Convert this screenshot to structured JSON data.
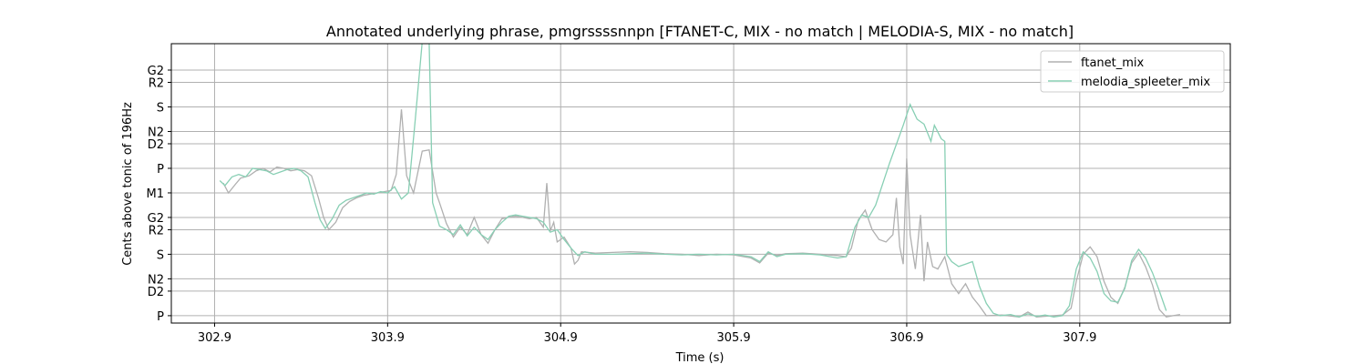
{
  "chart_data": {
    "type": "line",
    "title": "Annotated underlying phrase, pmgrssssnnpn [FTANET-C, MIX - no match | MELODIA-S, MIX - no match]",
    "xlabel": "Time (s)",
    "ylabel": "Cents above tonic of 196Hz",
    "xlim": [
      302.65,
      308.77
    ],
    "ylim": [
      -60,
      2215
    ],
    "grid": true,
    "legend_position": "top-right",
    "x_ticks": [
      302.9,
      303.9,
      304.9,
      305.9,
      306.9,
      307.9
    ],
    "y_ticks": [
      {
        "label": "P",
        "cents": 0
      },
      {
        "label": "D2",
        "cents": 200
      },
      {
        "label": "N2",
        "cents": 300
      },
      {
        "label": "S",
        "cents": 500
      },
      {
        "label": "R2",
        "cents": 700
      },
      {
        "label": "G2",
        "cents": 800
      },
      {
        "label": "M1",
        "cents": 1000
      },
      {
        "label": "P",
        "cents": 1200
      },
      {
        "label": "D2",
        "cents": 1400
      },
      {
        "label": "N2",
        "cents": 1500
      },
      {
        "label": "S",
        "cents": 1700
      },
      {
        "label": "R2",
        "cents": 1900
      },
      {
        "label": "G2",
        "cents": 2000
      }
    ],
    "series": [
      {
        "name": "ftanet_mix",
        "color": "#b0b0b0",
        "points": [
          [
            302.95,
            1080
          ],
          [
            302.98,
            1000
          ],
          [
            303.02,
            1070
          ],
          [
            303.05,
            1120
          ],
          [
            303.1,
            1140
          ],
          [
            303.14,
            1180
          ],
          [
            303.18,
            1200
          ],
          [
            303.22,
            1170
          ],
          [
            303.26,
            1210
          ],
          [
            303.3,
            1200
          ],
          [
            303.34,
            1180
          ],
          [
            303.38,
            1190
          ],
          [
            303.42,
            1180
          ],
          [
            303.46,
            1140
          ],
          [
            303.5,
            960
          ],
          [
            303.53,
            800
          ],
          [
            303.56,
            700
          ],
          [
            303.6,
            760
          ],
          [
            303.64,
            880
          ],
          [
            303.68,
            930
          ],
          [
            303.72,
            960
          ],
          [
            303.76,
            980
          ],
          [
            303.8,
            990
          ],
          [
            303.84,
            1000
          ],
          [
            303.88,
            1010
          ],
          [
            303.92,
            1020
          ],
          [
            303.95,
            1150
          ],
          [
            303.98,
            1680
          ],
          [
            304.01,
            1140
          ],
          [
            304.05,
            1000
          ],
          [
            304.1,
            1340
          ],
          [
            304.14,
            1350
          ],
          [
            304.18,
            1000
          ],
          [
            304.2,
            920
          ],
          [
            304.24,
            750
          ],
          [
            304.28,
            640
          ],
          [
            304.32,
            720
          ],
          [
            304.36,
            660
          ],
          [
            304.4,
            800
          ],
          [
            304.44,
            660
          ],
          [
            304.48,
            590
          ],
          [
            304.52,
            700
          ],
          [
            304.56,
            790
          ],
          [
            304.6,
            800
          ],
          [
            304.64,
            810
          ],
          [
            304.68,
            800
          ],
          [
            304.72,
            790
          ],
          [
            304.76,
            800
          ],
          [
            304.8,
            720
          ],
          [
            304.82,
            1080
          ],
          [
            304.84,
            690
          ],
          [
            304.86,
            760
          ],
          [
            304.88,
            600
          ],
          [
            304.92,
            640
          ],
          [
            304.96,
            550
          ],
          [
            304.98,
            420
          ],
          [
            305.0,
            450
          ],
          [
            305.02,
            520
          ],
          [
            305.1,
            510
          ],
          [
            305.2,
            515
          ],
          [
            305.3,
            520
          ],
          [
            305.4,
            515
          ],
          [
            305.5,
            505
          ],
          [
            305.6,
            500
          ],
          [
            305.7,
            490
          ],
          [
            305.8,
            500
          ],
          [
            305.9,
            495
          ],
          [
            306.0,
            470
          ],
          [
            306.05,
            430
          ],
          [
            306.1,
            510
          ],
          [
            306.15,
            490
          ],
          [
            306.2,
            505
          ],
          [
            306.3,
            510
          ],
          [
            306.4,
            500
          ],
          [
            306.5,
            490
          ],
          [
            306.55,
            480
          ],
          [
            306.58,
            550
          ],
          [
            306.62,
            780
          ],
          [
            306.66,
            860
          ],
          [
            306.7,
            700
          ],
          [
            306.74,
            620
          ],
          [
            306.78,
            600
          ],
          [
            306.82,
            660
          ],
          [
            306.84,
            960
          ],
          [
            306.86,
            560
          ],
          [
            306.88,
            420
          ],
          [
            306.9,
            1280
          ],
          [
            306.92,
            660
          ],
          [
            306.95,
            380
          ],
          [
            306.98,
            820
          ],
          [
            307.0,
            280
          ],
          [
            307.02,
            600
          ],
          [
            307.05,
            400
          ],
          [
            307.08,
            380
          ],
          [
            307.12,
            480
          ],
          [
            307.16,
            260
          ],
          [
            307.2,
            180
          ],
          [
            307.24,
            260
          ],
          [
            307.28,
            150
          ],
          [
            307.32,
            80
          ],
          [
            307.36,
            0
          ],
          [
            307.45,
            5
          ],
          [
            307.55,
            -10
          ],
          [
            307.6,
            30
          ],
          [
            307.65,
            -10
          ],
          [
            307.75,
            0
          ],
          [
            307.8,
            5
          ],
          [
            307.85,
            60
          ],
          [
            307.88,
            280
          ],
          [
            307.92,
            500
          ],
          [
            307.96,
            560
          ],
          [
            308.0,
            480
          ],
          [
            308.04,
            280
          ],
          [
            308.08,
            150
          ],
          [
            308.12,
            100
          ],
          [
            308.16,
            230
          ],
          [
            308.2,
            430
          ],
          [
            308.24,
            510
          ],
          [
            308.28,
            400
          ],
          [
            308.32,
            250
          ],
          [
            308.36,
            50
          ],
          [
            308.4,
            -10
          ],
          [
            308.44,
            0
          ],
          [
            308.48,
            10
          ]
        ]
      },
      {
        "name": "melodia_spleeter_mix",
        "color": "#88cfb4",
        "points": [
          [
            302.93,
            1100
          ],
          [
            302.96,
            1060
          ],
          [
            303.0,
            1130
          ],
          [
            303.04,
            1150
          ],
          [
            303.08,
            1130
          ],
          [
            303.12,
            1200
          ],
          [
            303.16,
            1190
          ],
          [
            303.2,
            1180
          ],
          [
            303.24,
            1150
          ],
          [
            303.28,
            1170
          ],
          [
            303.32,
            1190
          ],
          [
            303.36,
            1200
          ],
          [
            303.4,
            1180
          ],
          [
            303.44,
            1130
          ],
          [
            303.48,
            920
          ],
          [
            303.51,
            780
          ],
          [
            303.54,
            710
          ],
          [
            303.58,
            790
          ],
          [
            303.62,
            900
          ],
          [
            303.66,
            940
          ],
          [
            303.7,
            960
          ],
          [
            303.74,
            980
          ],
          [
            303.78,
            1000
          ],
          [
            303.82,
            990
          ],
          [
            303.86,
            1010
          ],
          [
            303.9,
            1000
          ],
          [
            303.94,
            1050
          ],
          [
            303.98,
            950
          ],
          [
            304.02,
            1000
          ],
          [
            304.06,
            1600
          ],
          [
            304.1,
            2230
          ],
          [
            304.14,
            2230
          ],
          [
            304.16,
            920
          ],
          [
            304.2,
            730
          ],
          [
            304.24,
            700
          ],
          [
            304.28,
            660
          ],
          [
            304.32,
            740
          ],
          [
            304.36,
            650
          ],
          [
            304.4,
            720
          ],
          [
            304.44,
            660
          ],
          [
            304.48,
            620
          ],
          [
            304.52,
            700
          ],
          [
            304.56,
            760
          ],
          [
            304.6,
            810
          ],
          [
            304.64,
            820
          ],
          [
            304.68,
            810
          ],
          [
            304.72,
            800
          ],
          [
            304.76,
            790
          ],
          [
            304.8,
            760
          ],
          [
            304.84,
            680
          ],
          [
            304.88,
            700
          ],
          [
            304.92,
            620
          ],
          [
            304.96,
            550
          ],
          [
            305.0,
            490
          ],
          [
            305.04,
            520
          ],
          [
            305.1,
            500
          ],
          [
            305.2,
            500
          ],
          [
            305.3,
            505
          ],
          [
            305.4,
            510
          ],
          [
            305.5,
            500
          ],
          [
            305.6,
            495
          ],
          [
            305.7,
            500
          ],
          [
            305.8,
            495
          ],
          [
            305.9,
            500
          ],
          [
            306.0,
            480
          ],
          [
            306.05,
            440
          ],
          [
            306.1,
            520
          ],
          [
            306.15,
            480
          ],
          [
            306.2,
            500
          ],
          [
            306.3,
            505
          ],
          [
            306.4,
            495
          ],
          [
            306.5,
            470
          ],
          [
            306.55,
            480
          ],
          [
            306.6,
            720
          ],
          [
            306.64,
            820
          ],
          [
            306.68,
            800
          ],
          [
            306.72,
            900
          ],
          [
            306.8,
            1240
          ],
          [
            306.88,
            1550
          ],
          [
            306.92,
            1720
          ],
          [
            306.96,
            1600
          ],
          [
            307.0,
            1560
          ],
          [
            307.04,
            1420
          ],
          [
            307.06,
            1550
          ],
          [
            307.1,
            1440
          ],
          [
            307.12,
            1420
          ],
          [
            307.13,
            500
          ],
          [
            307.16,
            440
          ],
          [
            307.2,
            400
          ],
          [
            307.24,
            420
          ],
          [
            307.28,
            440
          ],
          [
            307.32,
            240
          ],
          [
            307.36,
            100
          ],
          [
            307.4,
            20
          ],
          [
            307.44,
            0
          ],
          [
            307.5,
            10
          ],
          [
            307.55,
            -10
          ],
          [
            307.6,
            15
          ],
          [
            307.65,
            -5
          ],
          [
            307.7,
            5
          ],
          [
            307.75,
            -10
          ],
          [
            307.8,
            0
          ],
          [
            307.84,
            80
          ],
          [
            307.88,
            380
          ],
          [
            307.92,
            520
          ],
          [
            307.96,
            470
          ],
          [
            308.0,
            360
          ],
          [
            308.04,
            180
          ],
          [
            308.08,
            120
          ],
          [
            308.12,
            110
          ],
          [
            308.16,
            220
          ],
          [
            308.2,
            450
          ],
          [
            308.24,
            540
          ],
          [
            308.28,
            470
          ],
          [
            308.32,
            350
          ],
          [
            308.36,
            200
          ],
          [
            308.4,
            40
          ]
        ]
      }
    ]
  }
}
